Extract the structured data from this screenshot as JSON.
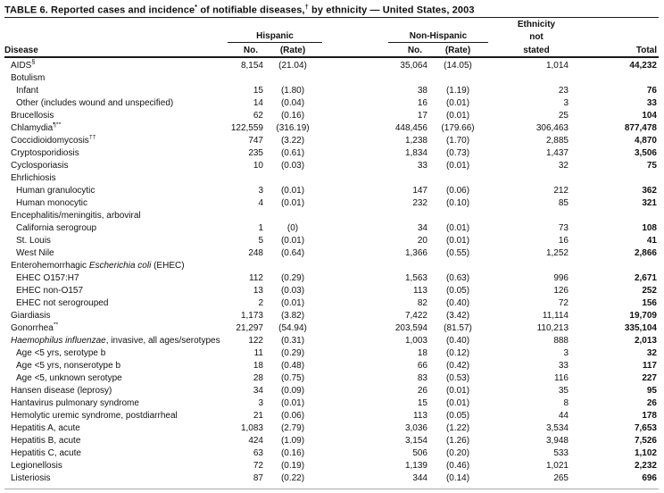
{
  "title": {
    "part1": "TABLE 6. Reported cases and incidence",
    "sup1": "*",
    "part2": " of notifiable diseases,",
    "sup2": "†",
    "part3": " by ethnicity — United States, 2003"
  },
  "header": {
    "disease": "Disease",
    "group_hispanic": "Hispanic",
    "group_non_hispanic": "Non-Hispanic",
    "ethnicity_line1": "Ethnicity",
    "ethnicity_line2": "not",
    "ethnicity_line3": "stated",
    "no_label": "No.",
    "rate_label": "(Rate)",
    "total_label": "Total"
  },
  "table": {
    "rows": [
      {
        "pre": "AIDS",
        "sup": "§",
        "hn": "8,154",
        "hr": "(21.04)",
        "nn": "35,064",
        "nr": "(14.05)",
        "es": "1,014",
        "tot": "44,232"
      },
      {
        "pre": "Botulism"
      },
      {
        "pre": "Infant",
        "indent": 1,
        "hn": "15",
        "hr": "(1.80)",
        "nn": "38",
        "nr": "(1.19)",
        "es": "23",
        "tot": "76"
      },
      {
        "pre": "Other (includes wound and unspecified)",
        "indent": 1,
        "hn": "14",
        "hr": "(0.04)",
        "nn": "16",
        "nr": "(0.01)",
        "es": "3",
        "tot": "33"
      },
      {
        "pre": "Brucellosis",
        "hn": "62",
        "hr": "(0.16)",
        "nn": "17",
        "nr": "(0.01)",
        "es": "25",
        "tot": "104"
      },
      {
        "pre": "Chlamydia",
        "sup": "¶**",
        "hn": "122,559",
        "hr": "(316.19)",
        "nn": "448,456",
        "nr": "(179.66)",
        "es": "306,463",
        "tot": "877,478"
      },
      {
        "pre": "Coccidioidomycosis",
        "sup": "††",
        "hn": "747",
        "hr": "(3.22)",
        "nn": "1,238",
        "nr": "(1.70)",
        "es": "2,885",
        "tot": "4,870"
      },
      {
        "pre": "Cryptosporidiosis",
        "hn": "235",
        "hr": "(0.61)",
        "nn": "1,834",
        "nr": "(0.73)",
        "es": "1,437",
        "tot": "3,506"
      },
      {
        "pre": "Cyclosporiasis",
        "hn": "10",
        "hr": "(0.03)",
        "nn": "33",
        "nr": "(0.01)",
        "es": "32",
        "tot": "75"
      },
      {
        "pre": "Ehrlichiosis"
      },
      {
        "pre": "Human granulocytic",
        "indent": 1,
        "hn": "3",
        "hr": "(0.01)",
        "nn": "147",
        "nr": "(0.06)",
        "es": "212",
        "tot": "362"
      },
      {
        "pre": "Human monocytic",
        "indent": 1,
        "hn": "4",
        "hr": "(0.01)",
        "nn": "232",
        "nr": "(0.10)",
        "es": "85",
        "tot": "321"
      },
      {
        "pre": "Encephalitis/meningitis, arboviral"
      },
      {
        "pre": "California serogroup",
        "indent": 1,
        "hn": "1",
        "hr": "(0)",
        "nn": "34",
        "nr": "(0.01)",
        "es": "73",
        "tot": "108"
      },
      {
        "pre": "St. Louis",
        "indent": 1,
        "hn": "5",
        "hr": "(0.01)",
        "nn": "20",
        "nr": "(0.01)",
        "es": "16",
        "tot": "41"
      },
      {
        "pre": "West Nile",
        "indent": 1,
        "hn": "248",
        "hr": "(0.64)",
        "nn": "1,366",
        "nr": "(0.55)",
        "es": "1,252",
        "tot": "2,866"
      },
      {
        "pre": "Enterohemorrhagic ",
        "italic": "Escherichia coli",
        "post": " (EHEC)"
      },
      {
        "pre": "EHEC O157:H7",
        "indent": 1,
        "hn": "112",
        "hr": "(0.29)",
        "nn": "1,563",
        "nr": "(0.63)",
        "es": "996",
        "tot": "2,671"
      },
      {
        "pre": "EHEC non-O157",
        "indent": 1,
        "hn": "13",
        "hr": "(0.03)",
        "nn": "113",
        "nr": "(0.05)",
        "es": "126",
        "tot": "252"
      },
      {
        "pre": "EHEC not serogrouped",
        "indent": 1,
        "hn": "2",
        "hr": "(0.01)",
        "nn": "82",
        "nr": "(0.40)",
        "es": "72",
        "tot": "156"
      },
      {
        "pre": "Giardiasis",
        "hn": "1,173",
        "hr": "(3.82)",
        "nn": "7,422",
        "nr": "(3.42)",
        "es": "11,114",
        "tot": "19,709"
      },
      {
        "pre": "Gonorrhea",
        "sup": "**",
        "hn": "21,297",
        "hr": "(54.94)",
        "nn": "203,594",
        "nr": "(81.57)",
        "es": "110,213",
        "tot": "335,104"
      },
      {
        "italic": "Haemophilus influenzae",
        "post": ", invasive, all ages/serotypes",
        "hn": "122",
        "hr": "(0.31)",
        "nn": "1,003",
        "nr": "(0.40)",
        "es": "888",
        "tot": "2,013"
      },
      {
        "pre": "Age <5 yrs, serotype b",
        "indent": 1,
        "hn": "11",
        "hr": "(0.29)",
        "nn": "18",
        "nr": "(0.12)",
        "es": "3",
        "tot": "32"
      },
      {
        "pre": "Age <5 yrs, nonserotype b",
        "indent": 1,
        "hn": "18",
        "hr": "(0.48)",
        "nn": "66",
        "nr": "(0.42)",
        "es": "33",
        "tot": "117"
      },
      {
        "pre": "Age <5, unknown serotype",
        "indent": 1,
        "hn": "28",
        "hr": "(0.75)",
        "nn": "83",
        "nr": "(0.53)",
        "es": "116",
        "tot": "227"
      },
      {
        "pre": "Hansen disease (leprosy)",
        "hn": "34",
        "hr": "(0.09)",
        "nn": "26",
        "nr": "(0.01)",
        "es": "35",
        "tot": "95"
      },
      {
        "pre": "Hantavirus pulmonary syndrome",
        "hn": "3",
        "hr": "(0.01)",
        "nn": "15",
        "nr": "(0.01)",
        "es": "8",
        "tot": "26"
      },
      {
        "pre": "Hemolytic uremic syndrome, postdiarrheal",
        "hn": "21",
        "hr": "(0.06)",
        "nn": "113",
        "nr": "(0.05)",
        "es": "44",
        "tot": "178"
      },
      {
        "pre": "Hepatitis A, acute",
        "hn": "1,083",
        "hr": "(2.79)",
        "nn": "3,036",
        "nr": "(1.22)",
        "es": "3,534",
        "tot": "7,653"
      },
      {
        "pre": "Hepatitis B, acute",
        "hn": "424",
        "hr": "(1.09)",
        "nn": "3,154",
        "nr": "(1.26)",
        "es": "3,948",
        "tot": "7,526"
      },
      {
        "pre": "Hepatitis C, acute",
        "hn": "63",
        "hr": "(0.16)",
        "nn": "506",
        "nr": "(0.20)",
        "es": "533",
        "tot": "1,102"
      },
      {
        "pre": "Legionellosis",
        "hn": "72",
        "hr": "(0.19)",
        "nn": "1,139",
        "nr": "(0.46)",
        "es": "1,021",
        "tot": "2,232"
      },
      {
        "pre": "Listeriosis",
        "hn": "87",
        "hr": "(0.22)",
        "nn": "344",
        "nr": "(0.14)",
        "es": "265",
        "tot": "696"
      }
    ]
  }
}
